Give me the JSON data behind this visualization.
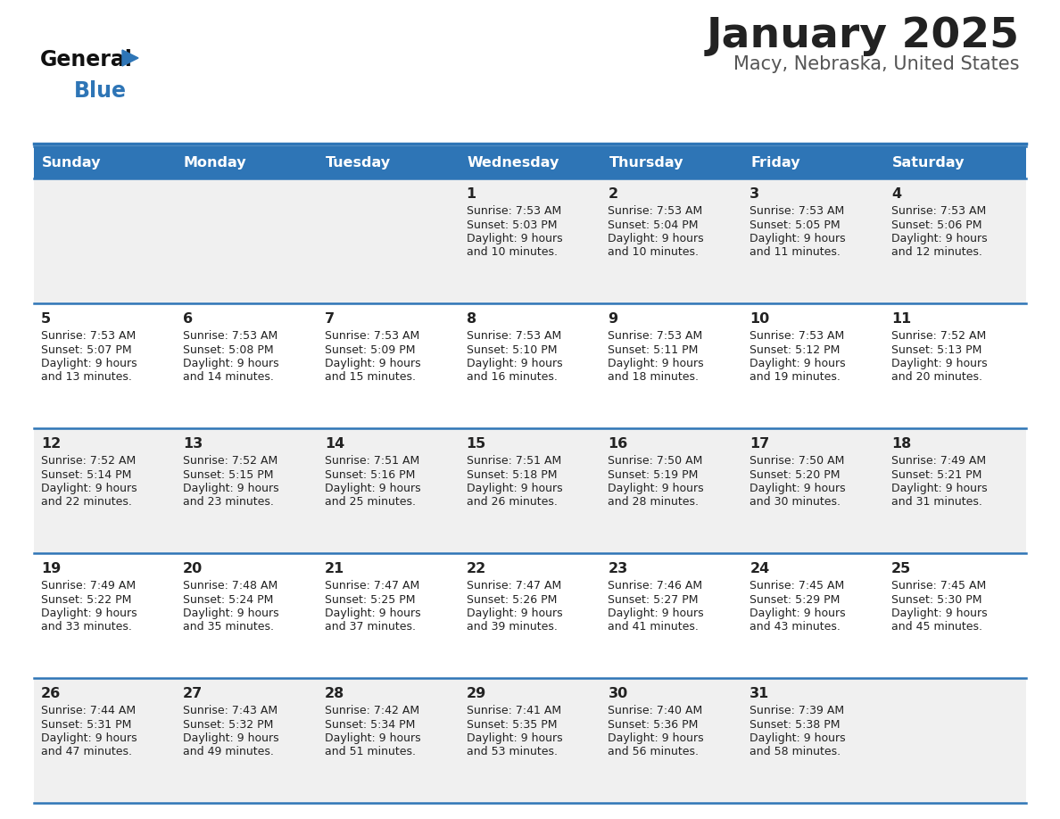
{
  "title": "January 2025",
  "subtitle": "Macy, Nebraska, United States",
  "days_of_week": [
    "Sunday",
    "Monday",
    "Tuesday",
    "Wednesday",
    "Thursday",
    "Friday",
    "Saturday"
  ],
  "header_bg": "#2E75B6",
  "header_text": "#FFFFFF",
  "row_bg_odd": "#F0F0F0",
  "row_bg_even": "#FFFFFF",
  "separator_color": "#2E75B6",
  "text_color": "#222222",
  "title_color": "#222222",
  "subtitle_color": "#555555",
  "logo_general_color": "#111111",
  "logo_blue_color": "#2E75B6",
  "calendar_data": [
    {
      "day": 1,
      "col": 3,
      "row": 0,
      "sunrise": "7:53 AM",
      "sunset": "5:03 PM",
      "daylight": "9 hours and 10 minutes."
    },
    {
      "day": 2,
      "col": 4,
      "row": 0,
      "sunrise": "7:53 AM",
      "sunset": "5:04 PM",
      "daylight": "9 hours and 10 minutes."
    },
    {
      "day": 3,
      "col": 5,
      "row": 0,
      "sunrise": "7:53 AM",
      "sunset": "5:05 PM",
      "daylight": "9 hours and 11 minutes."
    },
    {
      "day": 4,
      "col": 6,
      "row": 0,
      "sunrise": "7:53 AM",
      "sunset": "5:06 PM",
      "daylight": "9 hours and 12 minutes."
    },
    {
      "day": 5,
      "col": 0,
      "row": 1,
      "sunrise": "7:53 AM",
      "sunset": "5:07 PM",
      "daylight": "9 hours and 13 minutes."
    },
    {
      "day": 6,
      "col": 1,
      "row": 1,
      "sunrise": "7:53 AM",
      "sunset": "5:08 PM",
      "daylight": "9 hours and 14 minutes."
    },
    {
      "day": 7,
      "col": 2,
      "row": 1,
      "sunrise": "7:53 AM",
      "sunset": "5:09 PM",
      "daylight": "9 hours and 15 minutes."
    },
    {
      "day": 8,
      "col": 3,
      "row": 1,
      "sunrise": "7:53 AM",
      "sunset": "5:10 PM",
      "daylight": "9 hours and 16 minutes."
    },
    {
      "day": 9,
      "col": 4,
      "row": 1,
      "sunrise": "7:53 AM",
      "sunset": "5:11 PM",
      "daylight": "9 hours and 18 minutes."
    },
    {
      "day": 10,
      "col": 5,
      "row": 1,
      "sunrise": "7:53 AM",
      "sunset": "5:12 PM",
      "daylight": "9 hours and 19 minutes."
    },
    {
      "day": 11,
      "col": 6,
      "row": 1,
      "sunrise": "7:52 AM",
      "sunset": "5:13 PM",
      "daylight": "9 hours and 20 minutes."
    },
    {
      "day": 12,
      "col": 0,
      "row": 2,
      "sunrise": "7:52 AM",
      "sunset": "5:14 PM",
      "daylight": "9 hours and 22 minutes."
    },
    {
      "day": 13,
      "col": 1,
      "row": 2,
      "sunrise": "7:52 AM",
      "sunset": "5:15 PM",
      "daylight": "9 hours and 23 minutes."
    },
    {
      "day": 14,
      "col": 2,
      "row": 2,
      "sunrise": "7:51 AM",
      "sunset": "5:16 PM",
      "daylight": "9 hours and 25 minutes."
    },
    {
      "day": 15,
      "col": 3,
      "row": 2,
      "sunrise": "7:51 AM",
      "sunset": "5:18 PM",
      "daylight": "9 hours and 26 minutes."
    },
    {
      "day": 16,
      "col": 4,
      "row": 2,
      "sunrise": "7:50 AM",
      "sunset": "5:19 PM",
      "daylight": "9 hours and 28 minutes."
    },
    {
      "day": 17,
      "col": 5,
      "row": 2,
      "sunrise": "7:50 AM",
      "sunset": "5:20 PM",
      "daylight": "9 hours and 30 minutes."
    },
    {
      "day": 18,
      "col": 6,
      "row": 2,
      "sunrise": "7:49 AM",
      "sunset": "5:21 PM",
      "daylight": "9 hours and 31 minutes."
    },
    {
      "day": 19,
      "col": 0,
      "row": 3,
      "sunrise": "7:49 AM",
      "sunset": "5:22 PM",
      "daylight": "9 hours and 33 minutes."
    },
    {
      "day": 20,
      "col": 1,
      "row": 3,
      "sunrise": "7:48 AM",
      "sunset": "5:24 PM",
      "daylight": "9 hours and 35 minutes."
    },
    {
      "day": 21,
      "col": 2,
      "row": 3,
      "sunrise": "7:47 AM",
      "sunset": "5:25 PM",
      "daylight": "9 hours and 37 minutes."
    },
    {
      "day": 22,
      "col": 3,
      "row": 3,
      "sunrise": "7:47 AM",
      "sunset": "5:26 PM",
      "daylight": "9 hours and 39 minutes."
    },
    {
      "day": 23,
      "col": 4,
      "row": 3,
      "sunrise": "7:46 AM",
      "sunset": "5:27 PM",
      "daylight": "9 hours and 41 minutes."
    },
    {
      "day": 24,
      "col": 5,
      "row": 3,
      "sunrise": "7:45 AM",
      "sunset": "5:29 PM",
      "daylight": "9 hours and 43 minutes."
    },
    {
      "day": 25,
      "col": 6,
      "row": 3,
      "sunrise": "7:45 AM",
      "sunset": "5:30 PM",
      "daylight": "9 hours and 45 minutes."
    },
    {
      "day": 26,
      "col": 0,
      "row": 4,
      "sunrise": "7:44 AM",
      "sunset": "5:31 PM",
      "daylight": "9 hours and 47 minutes."
    },
    {
      "day": 27,
      "col": 1,
      "row": 4,
      "sunrise": "7:43 AM",
      "sunset": "5:32 PM",
      "daylight": "9 hours and 49 minutes."
    },
    {
      "day": 28,
      "col": 2,
      "row": 4,
      "sunrise": "7:42 AM",
      "sunset": "5:34 PM",
      "daylight": "9 hours and 51 minutes."
    },
    {
      "day": 29,
      "col": 3,
      "row": 4,
      "sunrise": "7:41 AM",
      "sunset": "5:35 PM",
      "daylight": "9 hours and 53 minutes."
    },
    {
      "day": 30,
      "col": 4,
      "row": 4,
      "sunrise": "7:40 AM",
      "sunset": "5:36 PM",
      "daylight": "9 hours and 56 minutes."
    },
    {
      "day": 31,
      "col": 5,
      "row": 4,
      "sunrise": "7:39 AM",
      "sunset": "5:38 PM",
      "daylight": "9 hours and 58 minutes."
    }
  ]
}
